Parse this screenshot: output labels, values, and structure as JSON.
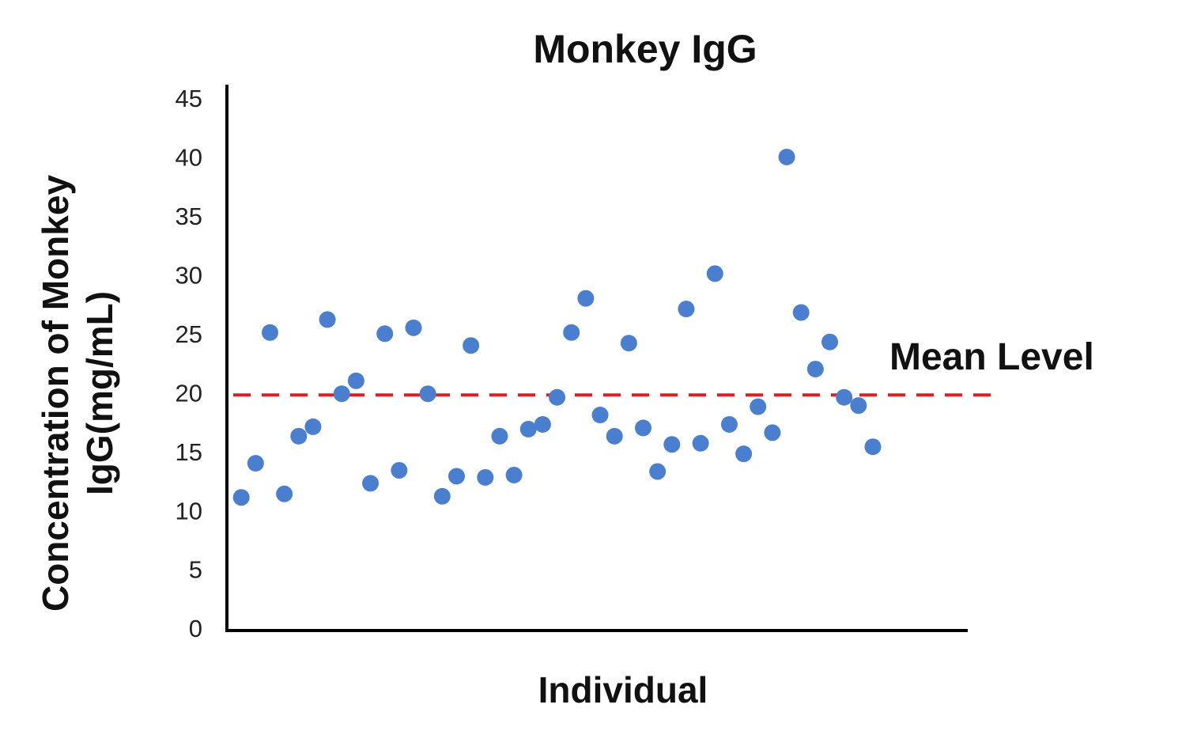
{
  "chart_data": {
    "type": "scatter",
    "title": "Monkey IgG",
    "xlabel": "Individual",
    "ylabel": [
      "Concentration of Monkey",
      "IgG(mg/mL)"
    ],
    "x": [
      1,
      2,
      3,
      4,
      5,
      6,
      7,
      8,
      9,
      10,
      11,
      12,
      13,
      14,
      15,
      16,
      17,
      18,
      19,
      20,
      21,
      22,
      23,
      24,
      25,
      26,
      27,
      28,
      29,
      30,
      31,
      32,
      33,
      34,
      35,
      36,
      37,
      38,
      39,
      40,
      41,
      42,
      43,
      44,
      45
    ],
    "series": [
      {
        "color": "#4a7fcf",
        "values": [
          11.3,
          14.2,
          25.3,
          11.6,
          16.5,
          17.3,
          26.4,
          20.1,
          21.2,
          12.5,
          25.2,
          13.6,
          25.7,
          20.1,
          11.4,
          13.1,
          24.2,
          13.0,
          16.5,
          13.2,
          17.1,
          17.5,
          19.8,
          25.3,
          28.2,
          18.3,
          16.5,
          24.4,
          17.2,
          13.5,
          15.8,
          27.3,
          15.9,
          30.3,
          17.5,
          15.0,
          19.0,
          16.8,
          40.2,
          27.0,
          22.2,
          24.5,
          19.8,
          19.1,
          15.6
        ]
      }
    ],
    "xlim": [
      0,
      51.5
    ],
    "ylim": [
      0,
      45
    ],
    "yticks": [
      0,
      5,
      10,
      15,
      20,
      25,
      30,
      35,
      40,
      45
    ],
    "mean_line": {
      "value": 20,
      "label": "Mean Level",
      "color": "#e02020"
    }
  }
}
